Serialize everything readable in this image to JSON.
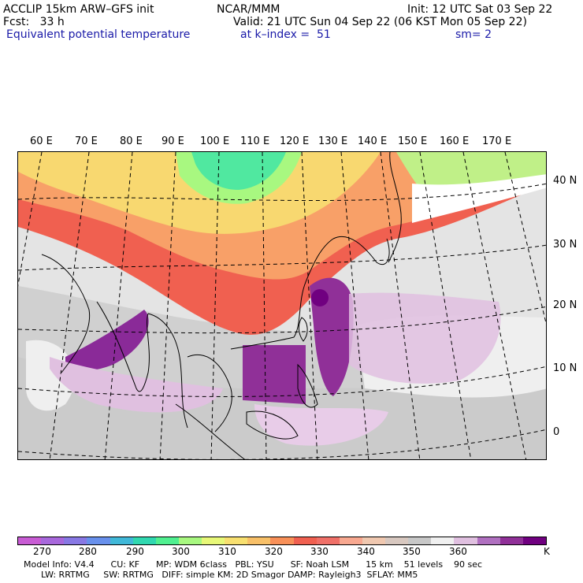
{
  "header": {
    "model_line": "ACCLIP 15km ARW–GFS init",
    "center": "NCAR/MMM",
    "init": "Init: 12 UTC Sat 03 Sep 22",
    "fcst": "Fcst:   33 h",
    "valid": "Valid: 21 UTC Sun 04 Sep 22 (06 KST Mon 05 Sep 22)",
    "field": "Equivalent potential temperature",
    "level": "at k–index =  51",
    "smooth": "sm= 2"
  },
  "axes": {
    "lon_labels": [
      "60 E",
      "70 E",
      "80 E",
      "90 E",
      "100 E",
      "110 E",
      "120 E",
      "130 E",
      "140 E",
      "150 E",
      "160 E",
      "170 E"
    ],
    "lat_labels": [
      "40 N",
      "30 N",
      "20 N",
      "10 N",
      "0"
    ]
  },
  "colorbar": {
    "unit": "K",
    "colors": [
      "#c85cd4",
      "#a868dc",
      "#8878e4",
      "#6890ec",
      "#40b8d8",
      "#30d8b0",
      "#50f090",
      "#a8f880",
      "#e8f878",
      "#f8e070",
      "#f8c068",
      "#f89058",
      "#f06050",
      "#f07068",
      "#f8a890",
      "#f0c8b0",
      "#d8c8c0",
      "#c8c8c8",
      "#f0f0f0",
      "#e0c0e0",
      "#b070c0",
      "#903098",
      "#700080"
    ],
    "labels": [
      "270",
      "280",
      "290",
      "300",
      "310",
      "320",
      "330",
      "340",
      "350",
      "360"
    ]
  },
  "footer": {
    "line1": "Model Info: V4.4      CU: KF      MP: WDM 6class   PBL: YSU      SF: Noah LSM      15 km    51 levels    90 sec",
    "line2": "LW: RRTMG     SW: RRTMG   DIFF: simple KM: 2D Smagor DAMP: Rayleigh3  SFLAY: MM5"
  }
}
